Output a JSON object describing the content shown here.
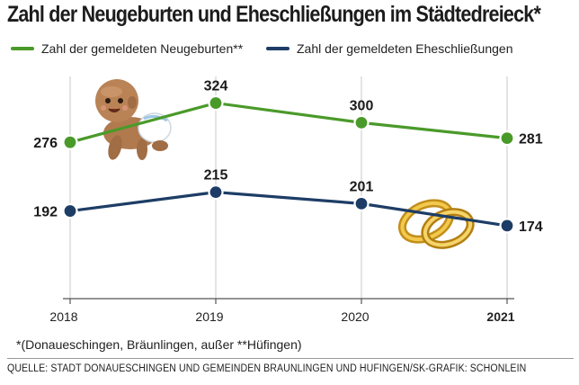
{
  "title": "Zahl der Neugeburten und Eheschließungen im Städtedreieck*",
  "legend": {
    "births": "Zahl der gemeldeten Neugeburten**",
    "marriages": "Zahl der gemeldeten Eheschließungen"
  },
  "footnote": "*(Donaueschingen, Bräunlingen, außer **Hüfingen)",
  "source": "QUELLE: STADT DONAUESCHINGEN UND GEMEINDEN BRÄUNLINGEN UND HÜFINGEN/SK-GRAFIK: SCHÖNLEIN",
  "colors": {
    "births": "#4a9a2a",
    "marriages": "#1d3d66",
    "grid": "#c8c8c8",
    "axis": "#555555"
  },
  "chart_data": {
    "type": "line",
    "title": "Zahl der Neugeburten und Eheschließungen im Städtedreieck*",
    "xlabel": "",
    "ylabel": "",
    "x": [
      "2018",
      "2019",
      "2020",
      "2021"
    ],
    "ylim": [
      120,
      340
    ],
    "grid": "vertical",
    "legend_position": "top",
    "series": [
      {
        "name": "Zahl der gemeldeten Neugeburten**",
        "values": [
          276,
          324,
          300,
          281
        ],
        "labels": [
          "276",
          "324",
          "300",
          "281"
        ]
      },
      {
        "name": "Zahl der gemeldeten Eheschließungen",
        "values": [
          192,
          215,
          201,
          174
        ],
        "labels": [
          "192",
          "215",
          "201",
          "174"
        ]
      }
    ]
  }
}
